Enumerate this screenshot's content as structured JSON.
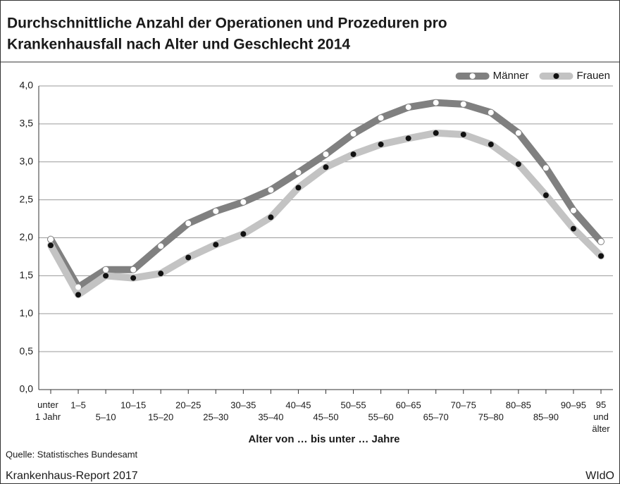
{
  "chart_data": {
    "type": "line",
    "title": [
      "Durchschnittliche Anzahl der Operationen und Prozeduren pro",
      "Krankenhausfall nach Alter und Geschlecht 2014"
    ],
    "x_label": "Alter von … bis unter … Jahre",
    "source": "Quelle: Statistisches Bundesamt",
    "footer_left": "Krankenhaus-Report 2017",
    "footer_right": "WIdO",
    "categories": [
      "unter\n1 Jahr",
      "1–5",
      "5–10",
      "10–15",
      "15–20",
      "20–25",
      "25–30",
      "30–35",
      "35–40",
      "40–45",
      "45–50",
      "50–55",
      "55–60",
      "60–65",
      "65–70",
      "70–75",
      "75–80",
      "80–85",
      "85–90",
      "90–95",
      "95\nund\nälter"
    ],
    "series": [
      {
        "name": "Männer",
        "color": "#808080",
        "marker_color": "#ffffff",
        "values": [
          1.98,
          1.35,
          1.58,
          1.58,
          1.89,
          2.19,
          2.35,
          2.47,
          2.63,
          2.86,
          3.1,
          3.37,
          3.58,
          3.72,
          3.78,
          3.76,
          3.65,
          3.38,
          2.92,
          2.36,
          1.95
        ]
      },
      {
        "name": "Frauen",
        "color": "#c3c3c3",
        "marker_color": "#111111",
        "values": [
          1.9,
          1.25,
          1.5,
          1.47,
          1.53,
          1.74,
          1.91,
          2.05,
          2.27,
          2.66,
          2.93,
          3.1,
          3.23,
          3.31,
          3.38,
          3.36,
          3.23,
          2.97,
          2.56,
          2.12,
          1.76
        ]
      }
    ],
    "ylim": [
      0,
      4
    ],
    "yticks": [
      {
        "value": 0,
        "label": "0,0"
      },
      {
        "value": 0.5,
        "label": "0,5"
      },
      {
        "value": 1,
        "label": "1,0"
      },
      {
        "value": 1.5,
        "label": "1,5"
      },
      {
        "value": 2,
        "label": "2,0"
      },
      {
        "value": 2.5,
        "label": "2,5"
      },
      {
        "value": 3,
        "label": "3,0"
      },
      {
        "value": 3.5,
        "label": "3,5"
      },
      {
        "value": 4,
        "label": "4,0"
      }
    ],
    "grid": true,
    "legend": "top-right"
  }
}
